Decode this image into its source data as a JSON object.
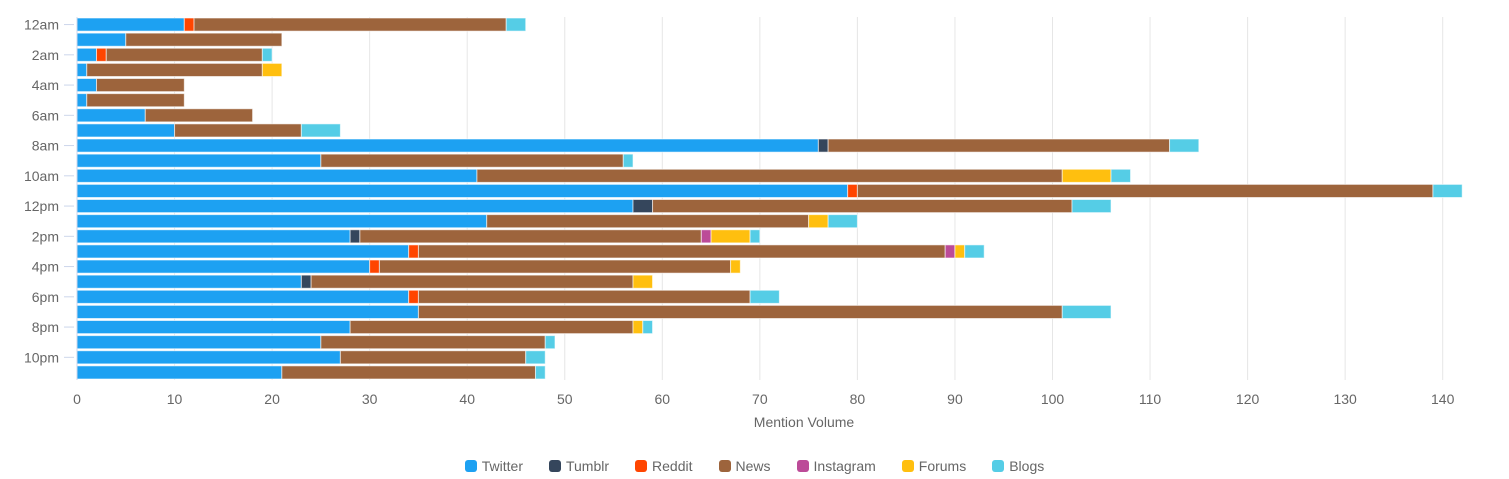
{
  "chart_data": {
    "type": "bar",
    "orientation": "horizontal",
    "stacked": true,
    "title": "",
    "xlabel": "Mention Volume",
    "ylabel": "",
    "xlim": [
      0,
      142
    ],
    "x_ticks": [
      0,
      10,
      20,
      30,
      40,
      50,
      60,
      70,
      80,
      90,
      100,
      110,
      120,
      130,
      140
    ],
    "grid": true,
    "legend_position": "bottom",
    "categories": [
      "12am",
      "1am",
      "2am",
      "3am",
      "4am",
      "5am",
      "6am",
      "7am",
      "8am",
      "9am",
      "10am",
      "11am",
      "12pm",
      "1pm",
      "2pm",
      "3pm",
      "4pm",
      "5pm",
      "6pm",
      "7pm",
      "8pm",
      "9pm",
      "10pm",
      "11pm"
    ],
    "y_tick_labels": [
      "12am",
      "",
      "2am",
      "",
      "4am",
      "",
      "6am",
      "",
      "8am",
      "",
      "10am",
      "",
      "12pm",
      "",
      "2pm",
      "",
      "4pm",
      "",
      "6pm",
      "",
      "8pm",
      "",
      "10pm",
      ""
    ],
    "series": [
      {
        "name": "Twitter",
        "color": "#1da1f2",
        "values": [
          11,
          5,
          2,
          1,
          2,
          1,
          7,
          10,
          76,
          25,
          41,
          79,
          57,
          42,
          28,
          34,
          30,
          23,
          34,
          35,
          28,
          25,
          27,
          21
        ]
      },
      {
        "name": "Tumblr",
        "color": "#35465c",
        "values": [
          0,
          0,
          0,
          0,
          0,
          0,
          0,
          0,
          1,
          0,
          0,
          0,
          2,
          0,
          1,
          0,
          0,
          1,
          0,
          0,
          0,
          0,
          0,
          0
        ]
      },
      {
        "name": "Reddit",
        "color": "#ff4500",
        "values": [
          1,
          0,
          1,
          0,
          0,
          0,
          0,
          0,
          0,
          0,
          0,
          1,
          0,
          0,
          0,
          1,
          1,
          0,
          1,
          0,
          0,
          0,
          0,
          0
        ]
      },
      {
        "name": "News",
        "color": "#9d643c",
        "values": [
          32,
          16,
          16,
          18,
          9,
          10,
          11,
          13,
          35,
          31,
          60,
          59,
          43,
          33,
          35,
          54,
          36,
          33,
          34,
          66,
          29,
          23,
          19,
          26
        ]
      },
      {
        "name": "Instagram",
        "color": "#bc4b98",
        "values": [
          0,
          0,
          0,
          0,
          0,
          0,
          0,
          0,
          0,
          0,
          0,
          0,
          0,
          0,
          1,
          1,
          0,
          0,
          0,
          0,
          0,
          0,
          0,
          0
        ]
      },
      {
        "name": "Forums",
        "color": "#ffbf0f",
        "values": [
          0,
          0,
          0,
          2,
          0,
          0,
          0,
          0,
          0,
          0,
          5,
          0,
          0,
          2,
          4,
          1,
          1,
          2,
          0,
          0,
          1,
          0,
          0,
          0
        ]
      },
      {
        "name": "Blogs",
        "color": "#55cde6",
        "values": [
          2,
          0,
          1,
          0,
          0,
          0,
          0,
          4,
          3,
          1,
          2,
          3,
          4,
          3,
          1,
          2,
          0,
          0,
          3,
          5,
          1,
          1,
          2,
          1
        ]
      }
    ]
  }
}
